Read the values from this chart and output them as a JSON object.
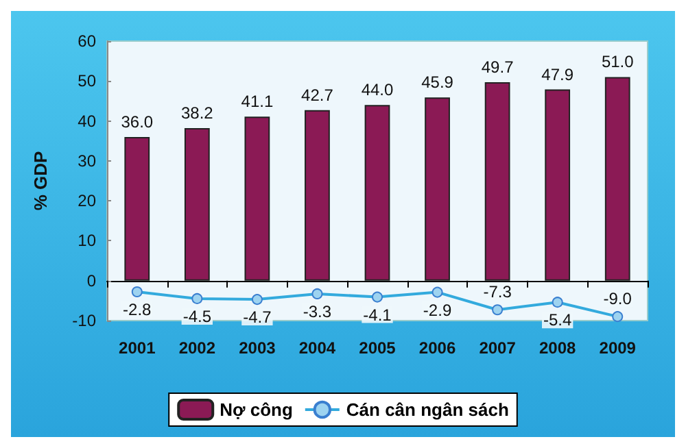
{
  "chart_data": {
    "type": "bar",
    "ylabel": "% GDP",
    "categories": [
      "2001",
      "2002",
      "2003",
      "2004",
      "2005",
      "2006",
      "2007",
      "2008",
      "2009"
    ],
    "series": [
      {
        "name": "Nợ công",
        "color": "#8b1a55",
        "values": [
          36.0,
          38.2,
          41.1,
          42.7,
          44.0,
          45.9,
          49.7,
          47.9,
          51.0
        ],
        "value_labels": [
          "36.0",
          "38.2",
          "41.1",
          "42.7",
          "44.0",
          "45.9",
          "49.7",
          "47.9",
          "51.0"
        ]
      },
      {
        "name": "Cán cân ngân sách",
        "type": "line",
        "color": "#33aadd",
        "values": [
          -2.8,
          -4.5,
          -4.7,
          -3.3,
          -4.1,
          -2.9,
          -7.3,
          -5.4,
          -9.0
        ],
        "value_labels": [
          "-2.8",
          "-4.5",
          "-4.7",
          "-3.3",
          "-4.1",
          "-2.9",
          "-7.3",
          "-5.4",
          "-9.0"
        ]
      }
    ],
    "ylim": [
      -10,
      60
    ],
    "yticks": [
      -10,
      0,
      10,
      20,
      30,
      40,
      50,
      60
    ],
    "legend": "bottom",
    "marker": "circle"
  }
}
